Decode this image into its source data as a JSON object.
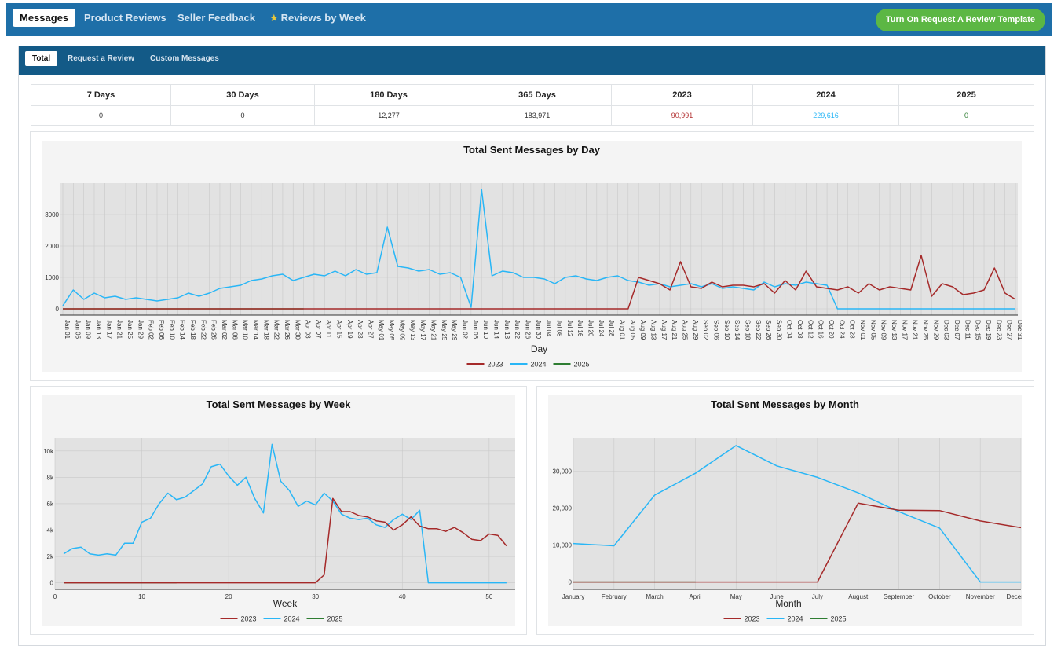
{
  "nav": {
    "tabs": [
      {
        "label": "Messages",
        "active": true
      },
      {
        "label": "Product Reviews"
      },
      {
        "label": "Seller Feedback"
      },
      {
        "label": "Reviews by Week"
      }
    ],
    "button": "Turn On Request A Review Template"
  },
  "subnav": {
    "tabs": [
      {
        "label": "Total",
        "active": true
      },
      {
        "label": "Request a Review"
      },
      {
        "label": "Custom Messages"
      }
    ]
  },
  "stats": [
    {
      "label": "7 Days",
      "value": "0",
      "color": "#333333"
    },
    {
      "label": "30 Days",
      "value": "0",
      "color": "#333333"
    },
    {
      "label": "180 Days",
      "value": "12,277",
      "color": "#333333"
    },
    {
      "label": "365 Days",
      "value": "183,971",
      "color": "#333333"
    },
    {
      "label": "2023",
      "value": "90,991",
      "color": "#b22f2f"
    },
    {
      "label": "2024",
      "value": "229,616",
      "color": "#29b6f6"
    },
    {
      "label": "2025",
      "value": "0",
      "color": "#2e7d32"
    }
  ],
  "colors": {
    "2023": "#a52a2a",
    "2024": "#29b6f6",
    "2025": "#2e7d32"
  },
  "chart_data": [
    {
      "type": "line",
      "title": "Total Sent Messages by Day",
      "xlabel": "Day",
      "ylabel": "",
      "ylim": [
        -200,
        4000
      ],
      "yticks": [
        0,
        1000,
        2000,
        3000
      ],
      "x_tick_labels": [
        "Jan 01",
        "Jan 05",
        "Jan 09",
        "Jan 13",
        "Jan 17",
        "Jan 21",
        "Jan 25",
        "Jan 29",
        "Feb 02",
        "Feb 06",
        "Feb 10",
        "Feb 14",
        "Feb 18",
        "Feb 22",
        "Feb 26",
        "Mar 02",
        "Mar 06",
        "Mar 10",
        "Mar 14",
        "Mar 18",
        "Mar 22",
        "Mar 26",
        "Mar 30",
        "Apr 03",
        "Apr 07",
        "Apr 11",
        "Apr 15",
        "Apr 19",
        "Apr 23",
        "Apr 27",
        "May 01",
        "May 05",
        "May 09",
        "May 13",
        "May 17",
        "May 21",
        "May 25",
        "May 29",
        "Jun 02",
        "Jun 06",
        "Jun 10",
        "Jun 14",
        "Jun 18",
        "Jun 22",
        "Jun 26",
        "Jun 30",
        "Jul 04",
        "Jul 08",
        "Jul 12",
        "Jul 16",
        "Jul 20",
        "Jul 24",
        "Jul 28",
        "Aug 01",
        "Aug 05",
        "Aug 09",
        "Aug 13",
        "Aug 17",
        "Aug 21",
        "Aug 25",
        "Aug 29",
        "Sep 02",
        "Sep 06",
        "Sep 10",
        "Sep 14",
        "Sep 18",
        "Sep 22",
        "Sep 26",
        "Sep 30",
        "Oct 04",
        "Oct 08",
        "Oct 12",
        "Oct 16",
        "Oct 20",
        "Oct 24",
        "Oct 28",
        "Nov 01",
        "Nov 05",
        "Nov 09",
        "Nov 13",
        "Nov 17",
        "Nov 21",
        "Nov 25",
        "Nov 29",
        "Dec 03",
        "Dec 07",
        "Dec 11",
        "Dec 15",
        "Dec 19",
        "Dec 23",
        "Dec 27",
        "Dec 31"
      ],
      "grid": true,
      "legend": "bottom",
      "series": [
        {
          "name": "2023",
          "x": [
            "Jan 01",
            "Aug 05",
            "Aug 09",
            "Aug 13",
            "Aug 17",
            "Aug 21",
            "Aug 25",
            "Aug 29",
            "Sep 02",
            "Sep 06",
            "Sep 10",
            "Sep 14",
            "Sep 18",
            "Sep 22",
            "Sep 26",
            "Sep 30",
            "Oct 04",
            "Oct 08",
            "Oct 12",
            "Oct 16",
            "Oct 20",
            "Oct 24",
            "Oct 28",
            "Nov 01",
            "Nov 05",
            "Nov 09",
            "Nov 13",
            "Nov 17",
            "Nov 21",
            "Nov 25",
            "Nov 29",
            "Dec 03",
            "Dec 07",
            "Dec 11",
            "Dec 15",
            "Dec 19",
            "Dec 23",
            "Dec 27",
            "Dec 31"
          ],
          "values": [
            0,
            0,
            1000,
            900,
            800,
            600,
            1500,
            700,
            650,
            850,
            700,
            750,
            750,
            700,
            800,
            500,
            900,
            600,
            1200,
            700,
            650,
            600,
            700,
            500,
            800,
            600,
            700,
            650,
            600,
            1700,
            400,
            800,
            700,
            450,
            500,
            600,
            1300,
            500,
            300
          ]
        },
        {
          "name": "2024",
          "x": [
            "Jan 01",
            "Jan 05",
            "Jan 09",
            "Jan 13",
            "Jan 17",
            "Jan 21",
            "Jan 25",
            "Jan 29",
            "Feb 02",
            "Feb 06",
            "Feb 10",
            "Feb 14",
            "Feb 18",
            "Feb 22",
            "Feb 26",
            "Mar 02",
            "Mar 06",
            "Mar 10",
            "Mar 14",
            "Mar 18",
            "Mar 22",
            "Mar 26",
            "Mar 30",
            "Apr 03",
            "Apr 07",
            "Apr 11",
            "Apr 15",
            "Apr 19",
            "Apr 23",
            "Apr 27",
            "May 01",
            "May 05",
            "May 09",
            "May 13",
            "May 17",
            "May 21",
            "May 25",
            "May 29",
            "Jun 02",
            "Jun 06",
            "Jun 10",
            "Jun 14",
            "Jun 18",
            "Jun 22",
            "Jun 26",
            "Jun 30",
            "Jul 04",
            "Jul 08",
            "Jul 12",
            "Jul 16",
            "Jul 20",
            "Jul 24",
            "Jul 28",
            "Aug 01",
            "Aug 05",
            "Aug 09",
            "Aug 13",
            "Aug 17",
            "Aug 21",
            "Aug 25",
            "Aug 29",
            "Sep 02",
            "Sep 06",
            "Sep 10",
            "Sep 14",
            "Sep 18",
            "Sep 22",
            "Sep 26",
            "Sep 30",
            "Oct 04",
            "Oct 08",
            "Oct 12",
            "Oct 16",
            "Oct 20",
            "Oct 24",
            "Oct 28",
            "Nov 01",
            "Nov 05",
            "Nov 09",
            "Nov 13",
            "Nov 17",
            "Nov 21",
            "Nov 25",
            "Nov 29",
            "Dec 03",
            "Dec 07",
            "Dec 11",
            "Dec 15",
            "Dec 19",
            "Dec 23",
            "Dec 27",
            "Dec 31"
          ],
          "values": [
            100,
            600,
            300,
            500,
            350,
            400,
            300,
            350,
            300,
            250,
            300,
            350,
            500,
            400,
            500,
            650,
            700,
            750,
            900,
            950,
            1050,
            1100,
            900,
            1000,
            1100,
            1050,
            1200,
            1050,
            1250,
            1100,
            1150,
            2600,
            1350,
            1300,
            1200,
            1250,
            1100,
            1150,
            1000,
            50,
            3800,
            1050,
            1200,
            1150,
            1000,
            1000,
            950,
            800,
            1000,
            1050,
            950,
            900,
            1000,
            1050,
            900,
            850,
            750,
            800,
            700,
            750,
            800,
            700,
            800,
            650,
            700,
            650,
            600,
            850,
            700,
            800,
            750,
            850,
            800,
            750,
            0,
            0,
            0,
            0,
            0,
            0,
            0,
            0,
            0,
            0,
            0,
            0,
            0,
            0,
            0,
            0,
            0,
            0
          ]
        },
        {
          "name": "2025",
          "x": [
            "Jan 01",
            "Apr 03"
          ],
          "values": [
            0,
            0
          ]
        }
      ]
    },
    {
      "type": "line",
      "title": "Total Sent Messages by Week",
      "xlabel": "Week",
      "ylabel": "",
      "xlim": [
        0,
        53
      ],
      "ylim": [
        -500,
        11000
      ],
      "xticks": [
        0,
        10,
        20,
        30,
        40,
        50
      ],
      "ytick_labels": [
        "0",
        "2k",
        "4k",
        "6k",
        "8k",
        "10k"
      ],
      "grid": true,
      "legend": "bottom",
      "series": [
        {
          "name": "2023",
          "x": [
            1,
            2,
            3,
            4,
            5,
            6,
            7,
            8,
            9,
            10,
            11,
            12,
            13,
            14,
            15,
            16,
            17,
            18,
            19,
            20,
            21,
            22,
            23,
            24,
            25,
            26,
            27,
            28,
            29,
            30,
            31,
            32,
            33,
            34,
            35,
            36,
            37,
            38,
            39,
            40,
            41,
            42,
            43,
            44,
            45,
            46,
            47,
            48,
            49,
            50,
            51,
            52
          ],
          "values": [
            0,
            0,
            0,
            0,
            0,
            0,
            0,
            0,
            0,
            0,
            0,
            0,
            0,
            0,
            0,
            0,
            0,
            0,
            0,
            0,
            0,
            0,
            0,
            0,
            0,
            0,
            0,
            0,
            0,
            0,
            600,
            6400,
            5400,
            5400,
            5100,
            5000,
            4700,
            4600,
            4000,
            4400,
            5000,
            4300,
            4100,
            4100,
            3900,
            4200,
            3800,
            3300,
            3200,
            3700,
            3600,
            2800
          ]
        },
        {
          "name": "2024",
          "x": [
            1,
            2,
            3,
            4,
            5,
            6,
            7,
            8,
            9,
            10,
            11,
            12,
            13,
            14,
            15,
            16,
            17,
            18,
            19,
            20,
            21,
            22,
            23,
            24,
            25,
            26,
            27,
            28,
            29,
            30,
            31,
            32,
            33,
            34,
            35,
            36,
            37,
            38,
            39,
            40,
            41,
            42,
            43,
            44,
            45,
            46,
            47,
            48,
            49,
            50,
            51,
            52
          ],
          "values": [
            2200,
            2600,
            2700,
            2200,
            2100,
            2200,
            2100,
            3000,
            3000,
            4600,
            4900,
            6000,
            6800,
            6300,
            6500,
            7000,
            7500,
            8800,
            9000,
            8100,
            7400,
            8000,
            6400,
            5300,
            10500,
            7700,
            7000,
            5800,
            6200,
            5900,
            6800,
            6200,
            5200,
            4900,
            4800,
            4900,
            4400,
            4200,
            4800,
            5200,
            4800,
            5500,
            0,
            0,
            0,
            0,
            0,
            0,
            0,
            0,
            0,
            0
          ]
        },
        {
          "name": "2025",
          "x": [
            1,
            14
          ],
          "values": [
            0,
            0
          ]
        }
      ]
    },
    {
      "type": "line",
      "title": "Total Sent Messages by Month",
      "xlabel": "Month",
      "ylabel": "",
      "categories": [
        "January",
        "February",
        "March",
        "April",
        "May",
        "June",
        "July",
        "August",
        "September",
        "October",
        "November",
        "December"
      ],
      "ylim": [
        -2000,
        39000
      ],
      "ytick_labels": [
        "0",
        "10,000",
        "20,000",
        "30,000"
      ],
      "grid": true,
      "legend": "bottom",
      "series": [
        {
          "name": "2023",
          "values": [
            0,
            0,
            0,
            0,
            0,
            0,
            0,
            21300,
            19400,
            19300,
            16500,
            14700
          ]
        },
        {
          "name": "2024",
          "values": [
            10400,
            9800,
            23500,
            29400,
            36900,
            31400,
            28300,
            24100,
            19000,
            14600,
            0,
            0
          ]
        },
        {
          "name": "2025",
          "values": [
            0,
            0,
            0,
            0,
            null,
            null,
            null,
            null,
            null,
            null,
            null,
            null
          ]
        }
      ]
    }
  ]
}
